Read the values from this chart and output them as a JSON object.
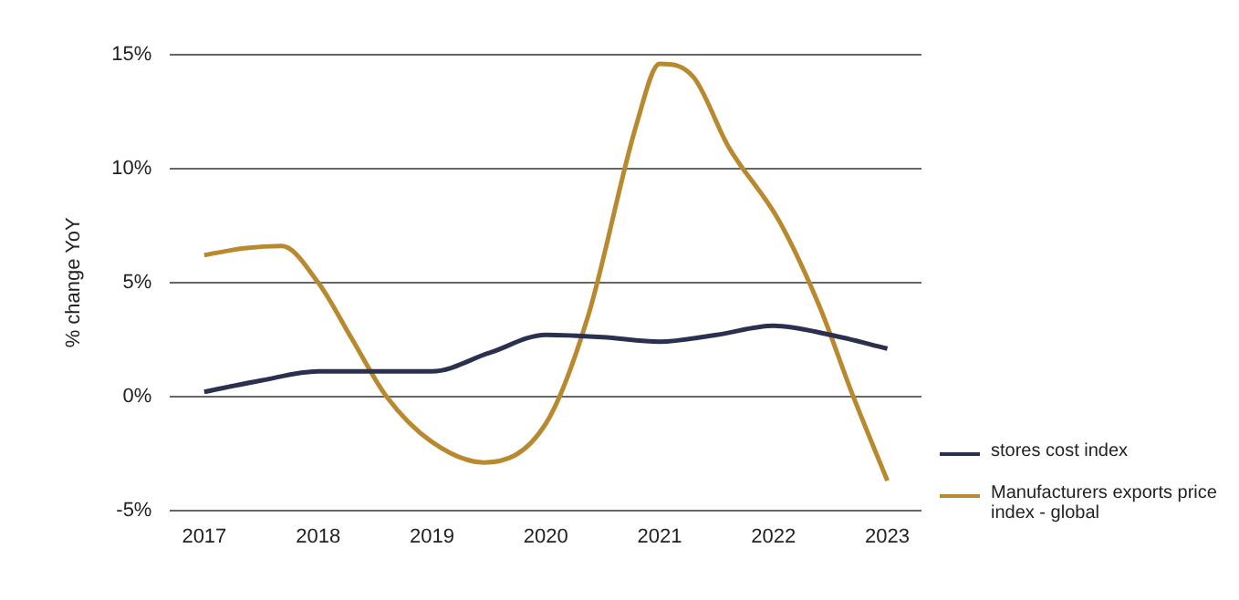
{
  "chart_data": {
    "type": "line",
    "ylabel": "% change YoY",
    "xlim": [
      2016.7,
      2023.3
    ],
    "xticks": [
      2017,
      2018,
      2019,
      2020,
      2021,
      2022,
      2023
    ],
    "ylim": [
      -5,
      15
    ],
    "yticks": [
      {
        "value": -5,
        "label": "-5%"
      },
      {
        "value": 0,
        "label": "0%"
      },
      {
        "value": 5,
        "label": "5%"
      },
      {
        "value": 10,
        "label": "10%"
      },
      {
        "value": 15,
        "label": "15%"
      }
    ],
    "grid": "y",
    "legend": "right",
    "marker": "none",
    "line_style": "solid",
    "series": [
      {
        "name": "stores cost index",
        "color": "#2b3050",
        "x": [
          2017,
          2017.5,
          2018,
          2018.5,
          2019,
          2019.5,
          2020,
          2020.5,
          2021,
          2021.5,
          2022,
          2022.5,
          2023
        ],
        "values": [
          0.2,
          0.7,
          1.1,
          1.1,
          1.1,
          1.9,
          2.7,
          2.6,
          2.4,
          2.7,
          3.1,
          2.7,
          2.1
        ]
      },
      {
        "name": "Manufacturers exports price index - global",
        "color": "#b8892e",
        "x": [
          2017,
          2017.35,
          2017.68,
          2018,
          2018.3,
          2018.6,
          2019,
          2019.46,
          2020,
          2020.37,
          2020.8,
          2021,
          2021.3,
          2021.6,
          2022.05,
          2022.4,
          2022.7,
          2023
        ],
        "values": [
          6.2,
          6.5,
          6.6,
          5.0,
          2.5,
          0,
          -2.0,
          -2.9,
          -1.2,
          3.5,
          12,
          14.6,
          14,
          11,
          7.7,
          4,
          0,
          -3.7
        ]
      }
    ]
  }
}
